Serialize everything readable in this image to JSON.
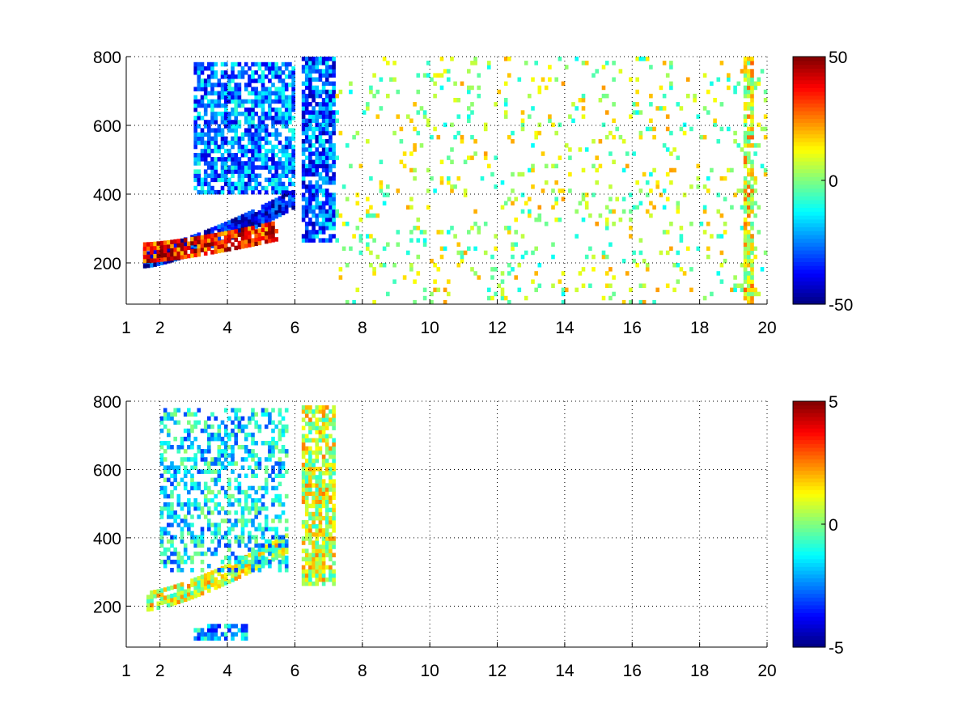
{
  "figure": {
    "background": "#ffffff"
  },
  "chart_data": [
    {
      "type": "heatmap",
      "title": "",
      "xlabel": "",
      "ylabel": "",
      "xlim": [
        1,
        20
      ],
      "ylim": [
        80,
        800
      ],
      "xticks": [
        1,
        2,
        4,
        6,
        8,
        10,
        12,
        14,
        16,
        18,
        20
      ],
      "yticks": [
        200,
        400,
        600,
        800
      ],
      "grid": true,
      "colormap": "jet",
      "colorbar": {
        "range": [
          -50,
          50
        ],
        "ticks": [
          -50,
          0,
          50
        ]
      },
      "features": [
        {
          "name": "strong band",
          "x_range": [
            1.5,
            6.0
          ],
          "y_start": 215,
          "y_growth": 23,
          "value": -40,
          "density": 0.9
        },
        {
          "name": "warm band",
          "x_range": [
            1.5,
            5.5
          ],
          "y_start": 230,
          "y_growth": 10,
          "value": 35,
          "density": 0.85
        },
        {
          "name": "upper blue region",
          "x_range": [
            3.0,
            6.0
          ],
          "y_range": [
            400,
            780
          ],
          "value": -25,
          "density": 0.7
        },
        {
          "name": "stripe block",
          "x_range": [
            6.2,
            7.2
          ],
          "y_range": [
            260,
            800
          ],
          "value": -28,
          "density": 0.8
        },
        {
          "name": "sparse noise",
          "x_range": [
            7.2,
            20.0
          ],
          "y_range": [
            80,
            800
          ],
          "value": 5,
          "density": 0.1
        },
        {
          "name": "column at 19.5",
          "x_range": [
            19.3,
            19.6
          ],
          "y_range": [
            80,
            800
          ],
          "value": 12,
          "density": 0.8
        }
      ]
    },
    {
      "type": "heatmap",
      "title": "",
      "xlabel": "",
      "ylabel": "",
      "xlim": [
        1,
        20
      ],
      "ylim": [
        80,
        800
      ],
      "xticks": [
        1,
        2,
        4,
        6,
        8,
        10,
        12,
        14,
        16,
        18,
        20
      ],
      "yticks": [
        200,
        400,
        600,
        800
      ],
      "grid": true,
      "colormap": "jet",
      "colorbar": {
        "range": [
          -5,
          5
        ],
        "ticks": [
          -5,
          0,
          5
        ]
      },
      "features": [
        {
          "name": "lower band",
          "x_range": [
            1.6,
            5.8
          ],
          "y_start": 215,
          "y_growth": 25,
          "value": 0.8,
          "density": 0.85
        },
        {
          "name": "upper region",
          "x_range": [
            2.0,
            5.8
          ],
          "y_range": [
            300,
            780
          ],
          "value": -1.5,
          "density": 0.45
        },
        {
          "name": "stripe block",
          "x_range": [
            6.2,
            7.2
          ],
          "y_range": [
            260,
            780
          ],
          "value": 0.8,
          "density": 0.8
        },
        {
          "name": "low patch",
          "x_range": [
            3.0,
            4.6
          ],
          "y_range": [
            100,
            140
          ],
          "value": -2,
          "density": 0.7
        }
      ]
    }
  ]
}
